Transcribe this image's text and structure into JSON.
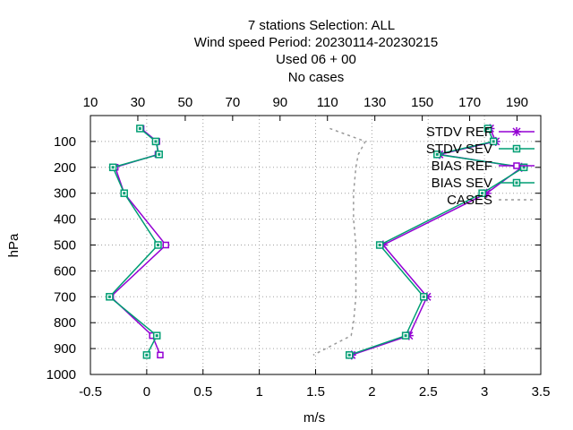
{
  "chart_data": {
    "type": "line",
    "title_lines": [
      "7 stations Selection: ALL",
      "Wind speed  Period: 20230114-20230215",
      "Used  06 + 00",
      "No cases"
    ],
    "xlabel": "m/s",
    "ylabel": "hPa",
    "xlim": [
      -0.5,
      3.5
    ],
    "ylim": [
      1000,
      0
    ],
    "x2lim": [
      10,
      200
    ],
    "x_ticks": [
      "-0.5",
      "0",
      "0.5",
      "1",
      "1.5",
      "2",
      "2.5",
      "3",
      "3.5"
    ],
    "x2_ticks": [
      "10",
      "30",
      "50",
      "70",
      "90",
      "110",
      "130",
      "150",
      "170",
      "190"
    ],
    "y_ticks": [
      "100",
      "200",
      "300",
      "400",
      "500",
      "600",
      "700",
      "800",
      "900",
      "1000"
    ],
    "grid": true,
    "legend_position": "top-right",
    "series": [
      {
        "name": "STDV REF",
        "axis": "bottom",
        "marker": "star",
        "color": "#9400d3",
        "points": [
          [
            3.05,
            50
          ],
          [
            3.1,
            100
          ],
          [
            2.6,
            150
          ],
          [
            3.33,
            200
          ],
          [
            3.02,
            300
          ],
          [
            2.1,
            500
          ],
          [
            2.49,
            700
          ],
          [
            2.33,
            850
          ],
          [
            1.82,
            925
          ]
        ]
      },
      {
        "name": "STDV SEV",
        "axis": "bottom",
        "marker": "boxfill",
        "color": "#009e73",
        "points": [
          [
            3.03,
            50
          ],
          [
            3.08,
            100
          ],
          [
            2.58,
            150
          ],
          [
            3.35,
            200
          ],
          [
            2.98,
            300
          ],
          [
            2.07,
            500
          ],
          [
            2.46,
            700
          ],
          [
            2.3,
            850
          ],
          [
            1.8,
            925
          ]
        ]
      },
      {
        "name": "BIAS REF",
        "axis": "bottom",
        "marker": "box",
        "color": "#9400d3",
        "points": [
          [
            -0.05,
            50
          ],
          [
            0.09,
            100
          ],
          [
            0.1,
            150
          ],
          [
            -0.28,
            200
          ],
          [
            -0.2,
            300
          ],
          [
            0.17,
            500
          ],
          [
            -0.32,
            700
          ],
          [
            0.05,
            850
          ],
          [
            0.12,
            925
          ]
        ]
      },
      {
        "name": "BIAS SEV",
        "axis": "bottom",
        "marker": "boxfill",
        "color": "#009e73",
        "points": [
          [
            -0.06,
            50
          ],
          [
            0.08,
            100
          ],
          [
            0.11,
            150
          ],
          [
            -0.3,
            200
          ],
          [
            -0.2,
            300
          ],
          [
            0.1,
            500
          ],
          [
            -0.33,
            700
          ],
          [
            0.09,
            850
          ],
          [
            0.0,
            925
          ]
        ]
      },
      {
        "name": "CASES",
        "axis": "top",
        "marker": "none",
        "color": "#999999",
        "dashed": true,
        "points": [
          [
            111,
            50
          ],
          [
            120,
            80
          ],
          [
            126,
            100
          ],
          [
            123,
            150
          ],
          [
            122,
            200
          ],
          [
            121,
            300
          ],
          [
            121,
            400
          ],
          [
            122,
            500
          ],
          [
            122,
            600
          ],
          [
            122,
            700
          ],
          [
            121,
            800
          ],
          [
            120,
            850
          ],
          [
            104,
            925
          ]
        ]
      }
    ]
  }
}
